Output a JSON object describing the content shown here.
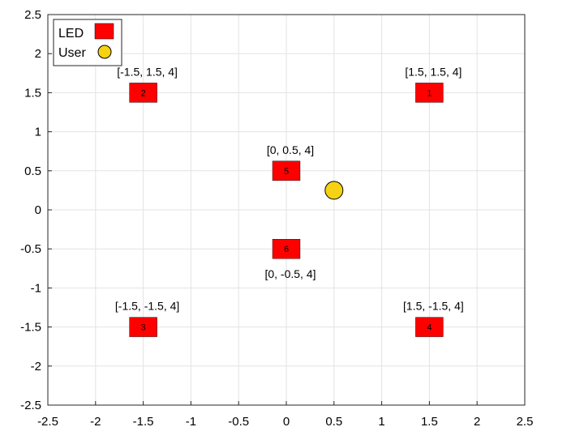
{
  "chart_data": {
    "type": "scatter",
    "xlim": [
      -2.5,
      2.5
    ],
    "ylim": [
      -2.5,
      2.5
    ],
    "xticks": [
      "-2.5",
      "-2",
      "-1.5",
      "-1",
      "-0.5",
      "0",
      "0.5",
      "1",
      "1.5",
      "2",
      "2.5"
    ],
    "yticks": [
      "-2.5",
      "-2",
      "-1.5",
      "-1",
      "-0.5",
      "0",
      "0.5",
      "1",
      "1.5",
      "2",
      "2.5"
    ],
    "grid": true,
    "legend": {
      "placement": "top-left",
      "entries": [
        {
          "label": "LED",
          "color": "#ff0000",
          "marker": "square"
        },
        {
          "label": "User",
          "color": "#f5d213",
          "marker": "circle"
        }
      ]
    },
    "series": [
      {
        "name": "LED",
        "color": "#ff0000",
        "points": [
          {
            "id": "1",
            "x": 1.5,
            "y": 1.5,
            "label": "[1.5, 1.5, 4]",
            "label_pos": "above"
          },
          {
            "id": "2",
            "x": -1.5,
            "y": 1.5,
            "label": "[-1.5, 1.5, 4]",
            "label_pos": "above"
          },
          {
            "id": "3",
            "x": -1.5,
            "y": -1.5,
            "label": "[-1.5, -1.5, 4]",
            "label_pos": "above"
          },
          {
            "id": "4",
            "x": 1.5,
            "y": -1.5,
            "label": "[1.5, -1.5, 4]",
            "label_pos": "above"
          },
          {
            "id": "5",
            "x": 0,
            "y": 0.5,
            "label": "[0, 0.5, 4]",
            "label_pos": "above"
          },
          {
            "id": "6",
            "x": 0,
            "y": -0.5,
            "label": "[0, -0.5, 4]",
            "label_pos": "below"
          }
        ]
      },
      {
        "name": "User",
        "color": "#f5d213",
        "points": [
          {
            "x": 0.5,
            "y": 0.25
          }
        ]
      }
    ]
  }
}
